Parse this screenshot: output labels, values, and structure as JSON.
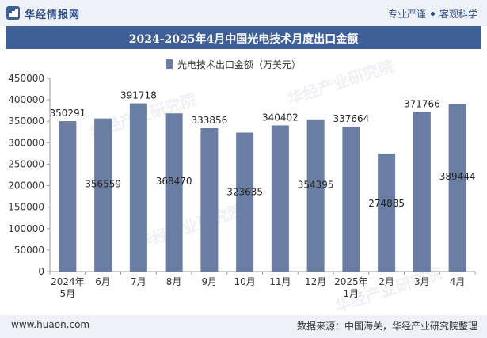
{
  "header": {
    "brand": "华经情报网",
    "slogan_left": "专业严谨",
    "slogan_right": "客观科学"
  },
  "chart_data": {
    "type": "bar",
    "title": "2024-2025年4月中国光电技术月度出口金额",
    "legend": [
      "光电技术出口金额（万美元）"
    ],
    "legend_position": "top-center",
    "categories": [
      "2024年\n5月",
      "6月",
      "7月",
      "8月",
      "9月",
      "10月",
      "11月",
      "12月",
      "2025年\n1月",
      "2月",
      "3月",
      "4月"
    ],
    "series": [
      {
        "name": "光电技术出口金额（万美元）",
        "values": [
          350291,
          356559,
          391718,
          368470,
          333856,
          323635,
          340402,
          354395,
          337664,
          274885,
          371766,
          389444
        ],
        "color": "#6a7ea4"
      }
    ],
    "data_labels": [
      "350291",
      "356559",
      "391718",
      "368470",
      "333856",
      "323635",
      "340402",
      "354395",
      "337664",
      "274885",
      "371766",
      "389444"
    ],
    "label_mode": [
      "above",
      "inside",
      "above",
      "inside",
      "above",
      "inside",
      "above",
      "inside",
      "above",
      "inside",
      "above",
      "inside"
    ],
    "y_ticks": [
      "0",
      "50000",
      "100000",
      "150000",
      "200000",
      "250000",
      "300000",
      "350000",
      "400000",
      "450000"
    ],
    "ylim": [
      0,
      450000
    ],
    "grid": false
  },
  "footer": {
    "site": "www.huaon.com",
    "source": "数据来源：中国海关，华经产业研究院整理"
  },
  "watermark": "华经产业研究院"
}
